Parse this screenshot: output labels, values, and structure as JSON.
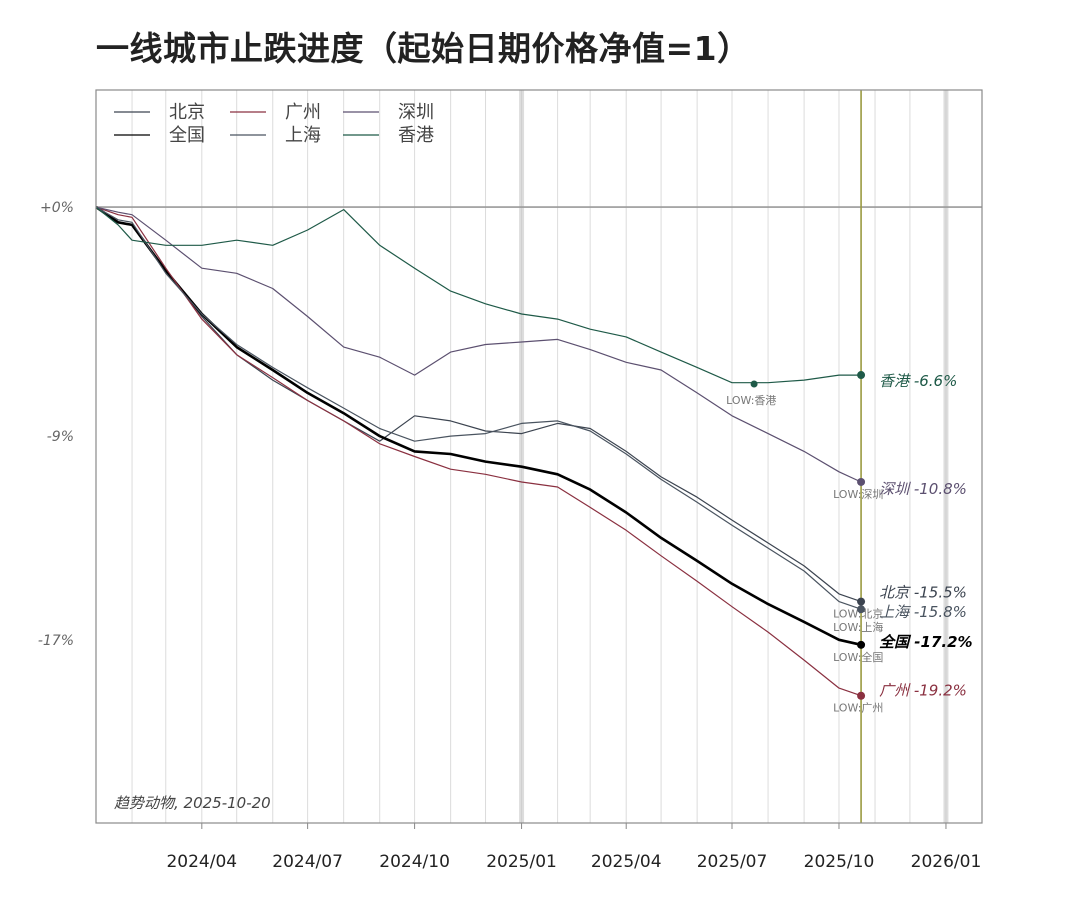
{
  "title": "一线城市止跌进度（起始日期价格净值=1）",
  "chart_data": {
    "type": "line",
    "title": "一线城市止跌进度（起始日期价格净值=1）",
    "source_note": "趋势动物, 2025-10-20",
    "x_axis": {
      "type": "date",
      "range": [
        "2024-01-01",
        "2026-02-01"
      ],
      "tick_labels": [
        "2024/04",
        "2024/07",
        "2024/10",
        "2025/01",
        "2025/04",
        "2025/07",
        "2025/10",
        "2026/01"
      ],
      "tick_dates": [
        "2024-04-01",
        "2024-07-01",
        "2024-10-01",
        "2025-01-01",
        "2025-04-01",
        "2025-07-01",
        "2025-10-01",
        "2026-01-01"
      ]
    },
    "y_axis": {
      "range": [
        -24.2,
        4.6
      ],
      "ticks": [
        0,
        -9,
        -17
      ],
      "tick_labels": [
        "+0%",
        "-9%",
        "-17%"
      ]
    },
    "grid": "vertical",
    "legend_position": "top-left",
    "current_date": "2025-10-20",
    "series": [
      {
        "name": "北京",
        "color": "#3c4450",
        "end_label": "北京 -15.5%",
        "low_label": "LOW:北京",
        "x": [
          "2024-01-01",
          "2024-01-20",
          "2024-02-01",
          "2024-03-01",
          "2024-04-01",
          "2024-05-01",
          "2024-06-01",
          "2024-07-01",
          "2024-08-01",
          "2024-09-01",
          "2024-10-01",
          "2024-11-01",
          "2024-12-01",
          "2025-01-01",
          "2025-02-01",
          "2025-03-01",
          "2025-04-01",
          "2025-05-01",
          "2025-06-01",
          "2025-07-01",
          "2025-08-01",
          "2025-09-01",
          "2025-10-01",
          "2025-10-20"
        ],
        "y": [
          0,
          -0.6,
          -0.7,
          -2.5,
          -4.3,
          -5.8,
          -6.8,
          -7.6,
          -8.4,
          -9.2,
          -8.2,
          -8.4,
          -8.8,
          -8.9,
          -8.5,
          -8.7,
          -9.6,
          -10.6,
          -11.4,
          -12.3,
          -13.2,
          -14.1,
          -15.2,
          -15.5
        ]
      },
      {
        "name": "全国",
        "color": "#000000",
        "end_label": "全国 -17.2%",
        "low_label": "LOW:全国",
        "x": [
          "2024-01-01",
          "2024-01-20",
          "2024-02-01",
          "2024-03-01",
          "2024-04-01",
          "2024-05-01",
          "2024-06-01",
          "2024-07-01",
          "2024-08-01",
          "2024-09-01",
          "2024-10-01",
          "2024-11-01",
          "2024-12-01",
          "2025-01-01",
          "2025-02-01",
          "2025-03-01",
          "2025-04-01",
          "2025-05-01",
          "2025-06-01",
          "2025-07-01",
          "2025-08-01",
          "2025-09-01",
          "2025-10-01",
          "2025-10-20"
        ],
        "y": [
          0,
          -0.6,
          -0.7,
          -2.5,
          -4.2,
          -5.5,
          -6.4,
          -7.3,
          -8.1,
          -9.0,
          -9.6,
          -9.7,
          -10.0,
          -10.2,
          -10.5,
          -11.1,
          -12.0,
          -13.0,
          -13.9,
          -14.8,
          -15.6,
          -16.3,
          -17.0,
          -17.2
        ]
      },
      {
        "name": "广州",
        "color": "#8a3040",
        "end_label": "广州 -19.2%",
        "low_label": "LOW:广州",
        "x": [
          "2024-01-01",
          "2024-01-20",
          "2024-02-01",
          "2024-03-01",
          "2024-04-01",
          "2024-05-01",
          "2024-06-01",
          "2024-07-01",
          "2024-08-01",
          "2024-09-01",
          "2024-10-01",
          "2024-11-01",
          "2024-12-01",
          "2025-01-01",
          "2025-02-01",
          "2025-03-01",
          "2025-04-01",
          "2025-05-01",
          "2025-06-01",
          "2025-07-01",
          "2025-08-01",
          "2025-09-01",
          "2025-10-01",
          "2025-10-20"
        ],
        "y": [
          0,
          -0.3,
          -0.4,
          -2.4,
          -4.4,
          -5.8,
          -6.7,
          -7.6,
          -8.4,
          -9.3,
          -9.8,
          -10.3,
          -10.5,
          -10.8,
          -11.0,
          -11.8,
          -12.7,
          -13.7,
          -14.7,
          -15.7,
          -16.7,
          -17.8,
          -18.9,
          -19.2
        ]
      },
      {
        "name": "上海",
        "color": "#4a5460",
        "end_label": "上海 -15.8%",
        "low_label": "LOW:上海",
        "x": [
          "2024-01-01",
          "2024-01-20",
          "2024-02-01",
          "2024-03-01",
          "2024-04-01",
          "2024-05-01",
          "2024-06-01",
          "2024-07-01",
          "2024-08-01",
          "2024-09-01",
          "2024-10-01",
          "2024-11-01",
          "2024-12-01",
          "2025-01-01",
          "2025-02-01",
          "2025-03-01",
          "2025-04-01",
          "2025-05-01",
          "2025-06-01",
          "2025-07-01",
          "2025-08-01",
          "2025-09-01",
          "2025-10-01",
          "2025-10-20"
        ],
        "y": [
          0,
          -0.5,
          -0.6,
          -2.6,
          -4.2,
          -5.4,
          -6.3,
          -7.1,
          -7.9,
          -8.7,
          -9.2,
          -9.0,
          -8.9,
          -8.5,
          -8.4,
          -8.8,
          -9.7,
          -10.7,
          -11.6,
          -12.5,
          -13.4,
          -14.3,
          -15.5,
          -15.8
        ]
      },
      {
        "name": "深圳",
        "color": "#5c5070",
        "end_label": "深圳 -10.8%",
        "low_label": "LOW:深圳",
        "x": [
          "2024-01-01",
          "2024-01-20",
          "2024-02-01",
          "2024-03-01",
          "2024-04-01",
          "2024-05-01",
          "2024-06-01",
          "2024-07-01",
          "2024-08-01",
          "2024-09-01",
          "2024-10-01",
          "2024-11-01",
          "2024-12-01",
          "2025-01-01",
          "2025-02-01",
          "2025-03-01",
          "2025-04-01",
          "2025-05-01",
          "2025-06-01",
          "2025-07-01",
          "2025-08-01",
          "2025-09-01",
          "2025-10-01",
          "2025-10-20"
        ],
        "y": [
          0,
          -0.2,
          -0.3,
          -1.3,
          -2.4,
          -2.6,
          -3.2,
          -4.3,
          -5.5,
          -5.9,
          -6.6,
          -5.7,
          -5.4,
          -5.3,
          -5.2,
          -5.6,
          -6.1,
          -6.4,
          -7.3,
          -8.2,
          -8.9,
          -9.6,
          -10.4,
          -10.8
        ]
      },
      {
        "name": "香港",
        "color": "#1f5a48",
        "end_label": "香港 -6.6%",
        "low_label": "LOW:香港",
        "x": [
          "2024-01-01",
          "2024-01-20",
          "2024-02-01",
          "2024-03-01",
          "2024-04-01",
          "2024-05-01",
          "2024-06-01",
          "2024-07-01",
          "2024-08-01",
          "2024-09-01",
          "2024-10-01",
          "2024-11-01",
          "2024-12-01",
          "2025-01-01",
          "2025-02-01",
          "2025-03-01",
          "2025-04-01",
          "2025-05-01",
          "2025-06-01",
          "2025-07-01",
          "2025-08-01",
          "2025-09-01",
          "2025-10-01",
          "2025-10-20"
        ],
        "y": [
          0,
          -0.7,
          -1.3,
          -1.5,
          -1.5,
          -1.3,
          -1.5,
          -0.9,
          -0.1,
          -1.5,
          -2.4,
          -3.3,
          -3.8,
          -4.2,
          -4.4,
          -4.8,
          -5.1,
          -5.7,
          -6.3,
          -6.9,
          -6.9,
          -6.8,
          -6.6,
          -6.6
        ]
      }
    ]
  }
}
